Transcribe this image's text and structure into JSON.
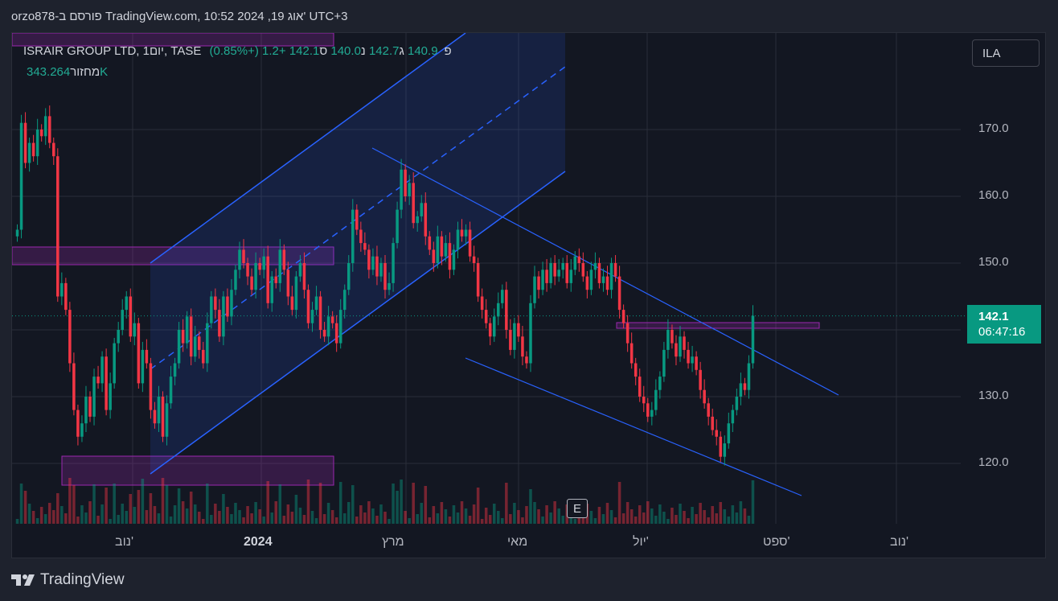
{
  "header": {
    "caption": "orzo878-פורסם ב TradingView.com, 10:52 2024 ,19 אוג' UTC+3"
  },
  "legend": {
    "symbol": "ISRAIR GROUP LTD, 1יום, TASE",
    "o_label": "פ",
    "o_val": "140.9",
    "h_label": "ג",
    "h_val": "142.7",
    "l_label": "נ",
    "l_val": "140.0",
    "c_label": "ס",
    "c_val": "142.1",
    "change": "+1.2 (+0.85%)",
    "volume_label": "מחזור",
    "volume_val": "343.264K"
  },
  "currency": "ILA",
  "price_label": {
    "price": "142.1",
    "countdown": "06:47:16"
  },
  "event_badge": "E",
  "y_ticks": [
    "170.0",
    "160.0",
    "150.0",
    "130.0",
    "120.0"
  ],
  "x_ticks": [
    "נוב'",
    "2024",
    "מרץ",
    "מאי",
    "יול'",
    "ספט'",
    "נוב'"
  ],
  "footer": {
    "brand": "TradingView"
  },
  "colors": {
    "up": "#089981",
    "down": "#f23645",
    "drawing": "#2962ff",
    "zone": "#9c27b0",
    "bg": "#131722"
  },
  "chart_data": {
    "type": "candlestick",
    "ylim": [
      110,
      180
    ],
    "last_price": 142.1,
    "prices": [
      155,
      171,
      165,
      168,
      166,
      170,
      169,
      172,
      168,
      166,
      145,
      147,
      143,
      135,
      128,
      124,
      126,
      130,
      127,
      133,
      132,
      136,
      128,
      132,
      138,
      140,
      143,
      145,
      139,
      141,
      132,
      137,
      135,
      128,
      126,
      130,
      124,
      129,
      133,
      135,
      140,
      138,
      142,
      136,
      139,
      137,
      135,
      141,
      145,
      143,
      139,
      145,
      142,
      146,
      149,
      152,
      150,
      148,
      146,
      150,
      149,
      151,
      144,
      148,
      147,
      152,
      149,
      145,
      143,
      148,
      150,
      146,
      141,
      143,
      145,
      140,
      139,
      142,
      141,
      138,
      143,
      146,
      150,
      158,
      155,
      153,
      152,
      149,
      151,
      148,
      150,
      146,
      147,
      153,
      158,
      164,
      160,
      162,
      156,
      157,
      159,
      154,
      152,
      150,
      154,
      151,
      153,
      149,
      152,
      155,
      154,
      155,
      151,
      150,
      145,
      143,
      141,
      139,
      142,
      144,
      146,
      140,
      137,
      141,
      139,
      136,
      135,
      144,
      148,
      146,
      149,
      147,
      150,
      148,
      149,
      150,
      147,
      149,
      151,
      150,
      148,
      146,
      149,
      150,
      147,
      148,
      146,
      150,
      148,
      143,
      141,
      138,
      135,
      133,
      130,
      129,
      127,
      128,
      131,
      133,
      137,
      140,
      138,
      136,
      139,
      137,
      135,
      136,
      134,
      131,
      129,
      127,
      125,
      124,
      121,
      123,
      126,
      128,
      130,
      132,
      131,
      135,
      142.1
    ]
  }
}
